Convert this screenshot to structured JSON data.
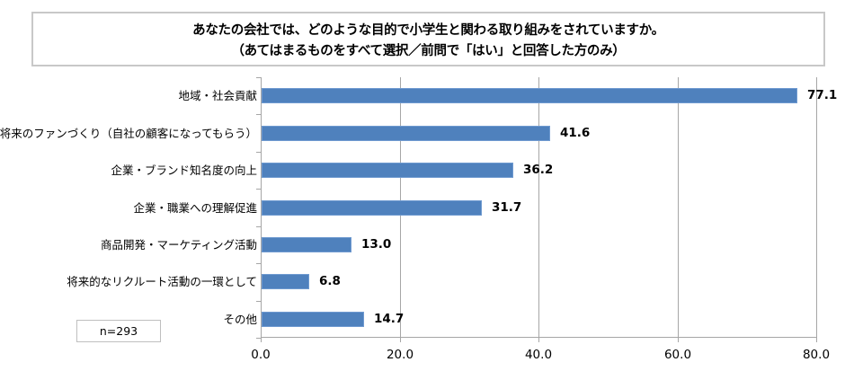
{
  "title": {
    "line1": "あなたの会社では、どのような目的で小学生と関わる取り組みをされていますか。",
    "line2": "（あてはまるものをすべて選択／前問で「はい」と回答した方のみ）"
  },
  "sample_size": "n=293",
  "colors": {
    "bar": "#4f81bd",
    "grid": "#a6a6a6",
    "box_border": "#c8c8c8"
  },
  "chart_data": {
    "type": "bar",
    "orientation": "horizontal",
    "title": "あなたの会社では、どのような目的で小学生と関わる取り組みをされていますか。（あてはまるものをすべて選択／前問で「はい」と回答した方のみ）",
    "categories": [
      "地域・社会貢献",
      "将来のファンづくり（自社の顧客になってもらう）",
      "企業・ブランド知名度の向上",
      "企業・職業への理解促進",
      "商品開発・マーケティング活動",
      "将来的なリクルート活動の一環として",
      "その他"
    ],
    "values": [
      77.1,
      41.6,
      36.2,
      31.7,
      13.0,
      6.8,
      14.7
    ],
    "value_labels": [
      "77.1",
      "41.6",
      "36.2",
      "31.7",
      "13.0",
      "6.8",
      "14.7"
    ],
    "xlabel": "",
    "ylabel": "",
    "xlim": [
      0,
      80
    ],
    "x_ticks": [
      "0.0",
      "20.0",
      "40.0",
      "60.0",
      "80.0"
    ],
    "grid": true,
    "legend": null,
    "annotation": "n=293"
  }
}
